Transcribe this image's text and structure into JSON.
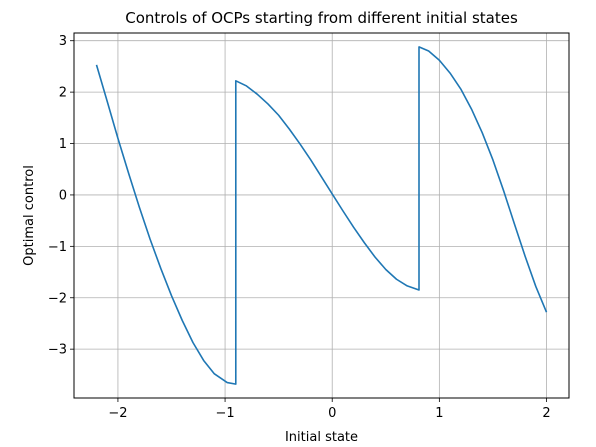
{
  "chart_data": {
    "type": "line",
    "title": "Controls of OCPs starting from different initial states",
    "xlabel": "Initial state",
    "ylabel": "Optimal control",
    "xlim": [
      -2.41,
      2.21
    ],
    "ylim": [
      -3.95,
      3.15
    ],
    "xticks": [
      -2,
      -1,
      0,
      1,
      2
    ],
    "xtick_labels": [
      "−2",
      "−1",
      "0",
      "1",
      "2"
    ],
    "yticks": [
      -3,
      -2,
      -1,
      0,
      1,
      2,
      3
    ],
    "ytick_labels": [
      "−3",
      "−2",
      "−1",
      "0",
      "1",
      "2",
      "3"
    ],
    "grid": true,
    "series": [
      {
        "color": "#1f77b4",
        "points": [
          [
            -2.2,
            2.53
          ],
          [
            -2.1,
            1.82
          ],
          [
            -2.0,
            1.1
          ],
          [
            -1.9,
            0.42
          ],
          [
            -1.8,
            -0.24
          ],
          [
            -1.7,
            -0.86
          ],
          [
            -1.6,
            -1.43
          ],
          [
            -1.5,
            -1.96
          ],
          [
            -1.4,
            -2.44
          ],
          [
            -1.3,
            -2.87
          ],
          [
            -1.2,
            -3.22
          ],
          [
            -1.1,
            -3.48
          ],
          [
            -0.98,
            -3.65
          ],
          [
            -0.9,
            -3.68
          ],
          [
            -0.9,
            2.22
          ],
          [
            -0.8,
            2.12
          ],
          [
            -0.7,
            1.96
          ],
          [
            -0.6,
            1.77
          ],
          [
            -0.5,
            1.55
          ],
          [
            -0.4,
            1.28
          ],
          [
            -0.3,
            0.99
          ],
          [
            -0.2,
            0.68
          ],
          [
            -0.1,
            0.35
          ],
          [
            0.0,
            0.02
          ],
          [
            0.1,
            -0.31
          ],
          [
            0.2,
            -0.63
          ],
          [
            0.3,
            -0.93
          ],
          [
            0.4,
            -1.21
          ],
          [
            0.5,
            -1.45
          ],
          [
            0.6,
            -1.64
          ],
          [
            0.7,
            -1.77
          ],
          [
            0.81,
            -1.85
          ],
          [
            0.81,
            2.88
          ],
          [
            0.9,
            2.8
          ],
          [
            1.0,
            2.62
          ],
          [
            1.1,
            2.37
          ],
          [
            1.2,
            2.06
          ],
          [
            1.3,
            1.67
          ],
          [
            1.4,
            1.21
          ],
          [
            1.5,
            0.68
          ],
          [
            1.6,
            0.08
          ],
          [
            1.7,
            -0.56
          ],
          [
            1.8,
            -1.19
          ],
          [
            1.9,
            -1.78
          ],
          [
            2.0,
            -2.28
          ]
        ]
      }
    ]
  }
}
